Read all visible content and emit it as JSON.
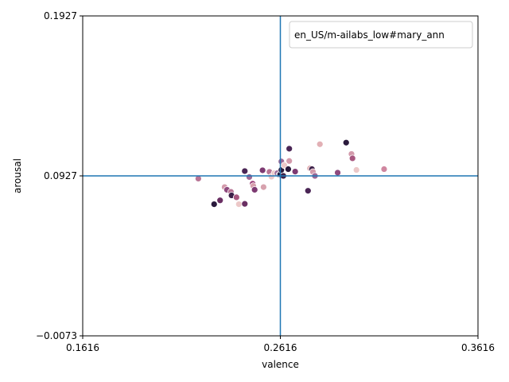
{
  "chart_data": {
    "type": "scatter",
    "xlabel": "valence",
    "ylabel": "arousal",
    "xlim": [
      0.1616,
      0.3616
    ],
    "ylim": [
      -0.0073,
      0.1927
    ],
    "xticks": [
      "0.1616",
      "0.2616",
      "0.3616"
    ],
    "yticks": [
      "−0.0073",
      "0.0927",
      "0.1927"
    ],
    "reference_lines": {
      "x": 0.2616,
      "y": 0.0927,
      "color": "#1f77b4"
    },
    "legend": {
      "label": "en_US/m-ailabs_low#mary_ann",
      "position": "top-right"
    },
    "grid": false,
    "points": [
      {
        "x": 0.2201,
        "y": 0.091,
        "color": "#b87495"
      },
      {
        "x": 0.2281,
        "y": 0.075,
        "color": "#2a1a3c"
      },
      {
        "x": 0.2311,
        "y": 0.0774,
        "color": "#6a2f63"
      },
      {
        "x": 0.2334,
        "y": 0.0857,
        "color": "#d39aab"
      },
      {
        "x": 0.2346,
        "y": 0.084,
        "color": "#8f4a7e"
      },
      {
        "x": 0.2366,
        "y": 0.0827,
        "color": "#b87495"
      },
      {
        "x": 0.2369,
        "y": 0.0805,
        "color": "#3d2149"
      },
      {
        "x": 0.2394,
        "y": 0.0793,
        "color": "#a8577f"
      },
      {
        "x": 0.2406,
        "y": 0.075,
        "color": "#ecc8c8"
      },
      {
        "x": 0.2436,
        "y": 0.0752,
        "color": "#6a2f63"
      },
      {
        "x": 0.2436,
        "y": 0.0957,
        "color": "#4a2555"
      },
      {
        "x": 0.2459,
        "y": 0.092,
        "color": "#9b6896"
      },
      {
        "x": 0.2476,
        "y": 0.0878,
        "color": "#9b3d77"
      },
      {
        "x": 0.2479,
        "y": 0.0864,
        "color": "#d7a2ae"
      },
      {
        "x": 0.2486,
        "y": 0.084,
        "color": "#7d3a72"
      },
      {
        "x": 0.2526,
        "y": 0.0962,
        "color": "#7d3a72"
      },
      {
        "x": 0.2531,
        "y": 0.0857,
        "color": "#d7a2ae"
      },
      {
        "x": 0.2561,
        "y": 0.0952,
        "color": "#b87495"
      },
      {
        "x": 0.2571,
        "y": 0.0922,
        "color": "#ecc8c8"
      },
      {
        "x": 0.2586,
        "y": 0.0944,
        "color": "#ecc8c8"
      },
      {
        "x": 0.2601,
        "y": 0.0944,
        "color": "#9b6896"
      },
      {
        "x": 0.2611,
        "y": 0.0934,
        "color": "#4a2555"
      },
      {
        "x": 0.2616,
        "y": 0.0937,
        "color": "#1f1a3c"
      },
      {
        "x": 0.2621,
        "y": 0.0964,
        "color": "#2a1a3c"
      },
      {
        "x": 0.2621,
        "y": 0.1017,
        "color": "#9b6896"
      },
      {
        "x": 0.2631,
        "y": 0.0927,
        "color": "#3d2149"
      },
      {
        "x": 0.2636,
        "y": 0.0993,
        "color": "#ecc8c8"
      },
      {
        "x": 0.2656,
        "y": 0.0969,
        "color": "#2a1a3c"
      },
      {
        "x": 0.2661,
        "y": 0.1097,
        "color": "#4a2555"
      },
      {
        "x": 0.2661,
        "y": 0.102,
        "color": "#d39aab"
      },
      {
        "x": 0.2691,
        "y": 0.0954,
        "color": "#7d3a72"
      },
      {
        "x": 0.2756,
        "y": 0.0834,
        "color": "#4a2555"
      },
      {
        "x": 0.2766,
        "y": 0.0974,
        "color": "#e2b0b5"
      },
      {
        "x": 0.2776,
        "y": 0.0969,
        "color": "#3d2149"
      },
      {
        "x": 0.2781,
        "y": 0.0952,
        "color": "#d39aab"
      },
      {
        "x": 0.2791,
        "y": 0.0927,
        "color": "#9b6896"
      },
      {
        "x": 0.2816,
        "y": 0.1125,
        "color": "#e2b0b5"
      },
      {
        "x": 0.2906,
        "y": 0.0947,
        "color": "#8f4a7e"
      },
      {
        "x": 0.2949,
        "y": 0.1135,
        "color": "#2a1a3c"
      },
      {
        "x": 0.2976,
        "y": 0.1064,
        "color": "#d39aab"
      },
      {
        "x": 0.2981,
        "y": 0.1037,
        "color": "#a8577f"
      },
      {
        "x": 0.3001,
        "y": 0.0964,
        "color": "#ecc8c8"
      },
      {
        "x": 0.3141,
        "y": 0.0969,
        "color": "#d087a0"
      }
    ]
  }
}
